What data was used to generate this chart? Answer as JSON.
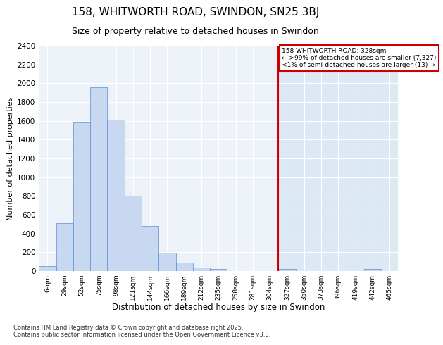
{
  "title1": "158, WHITWORTH ROAD, SWINDON, SN25 3BJ",
  "title2": "Size of property relative to detached houses in Swindon",
  "xlabel": "Distribution of detached houses by size in Swindon",
  "ylabel": "Number of detached properties",
  "bin_labels": [
    "6sqm",
    "29sqm",
    "52sqm",
    "75sqm",
    "98sqm",
    "121sqm",
    "144sqm",
    "166sqm",
    "189sqm",
    "212sqm",
    "235sqm",
    "258sqm",
    "281sqm",
    "304sqm",
    "327sqm",
    "350sqm",
    "373sqm",
    "396sqm",
    "419sqm",
    "442sqm",
    "465sqm"
  ],
  "bar_heights": [
    50,
    510,
    1590,
    1960,
    1610,
    800,
    480,
    195,
    90,
    35,
    20,
    0,
    0,
    0,
    20,
    0,
    0,
    0,
    0,
    20,
    0
  ],
  "bar_color_left": "#c8d8f0",
  "bar_color_right": "#c8d8f0",
  "bar_edge_color": "#5b8fd4",
  "bg_color_left": "#edf2f9",
  "bg_color_right": "#dde8f5",
  "grid_color": "#ffffff",
  "vline_index": 14,
  "vline_color": "#cc0000",
  "annotation_title": "158 WHITWORTH ROAD: 328sqm",
  "annotation_line1": "← >99% of detached houses are smaller (7,327)",
  "annotation_line2": "<1% of semi-detached houses are larger (13) →",
  "annotation_box_color": "#ffffff",
  "annotation_box_edge": "#cc0000",
  "ylim": [
    0,
    2400
  ],
  "yticks": [
    0,
    200,
    400,
    600,
    800,
    1000,
    1200,
    1400,
    1600,
    1800,
    2000,
    2200,
    2400
  ],
  "footer1": "Contains HM Land Registry data © Crown copyright and database right 2025.",
  "footer2": "Contains public sector information licensed under the Open Government Licence v3.0."
}
